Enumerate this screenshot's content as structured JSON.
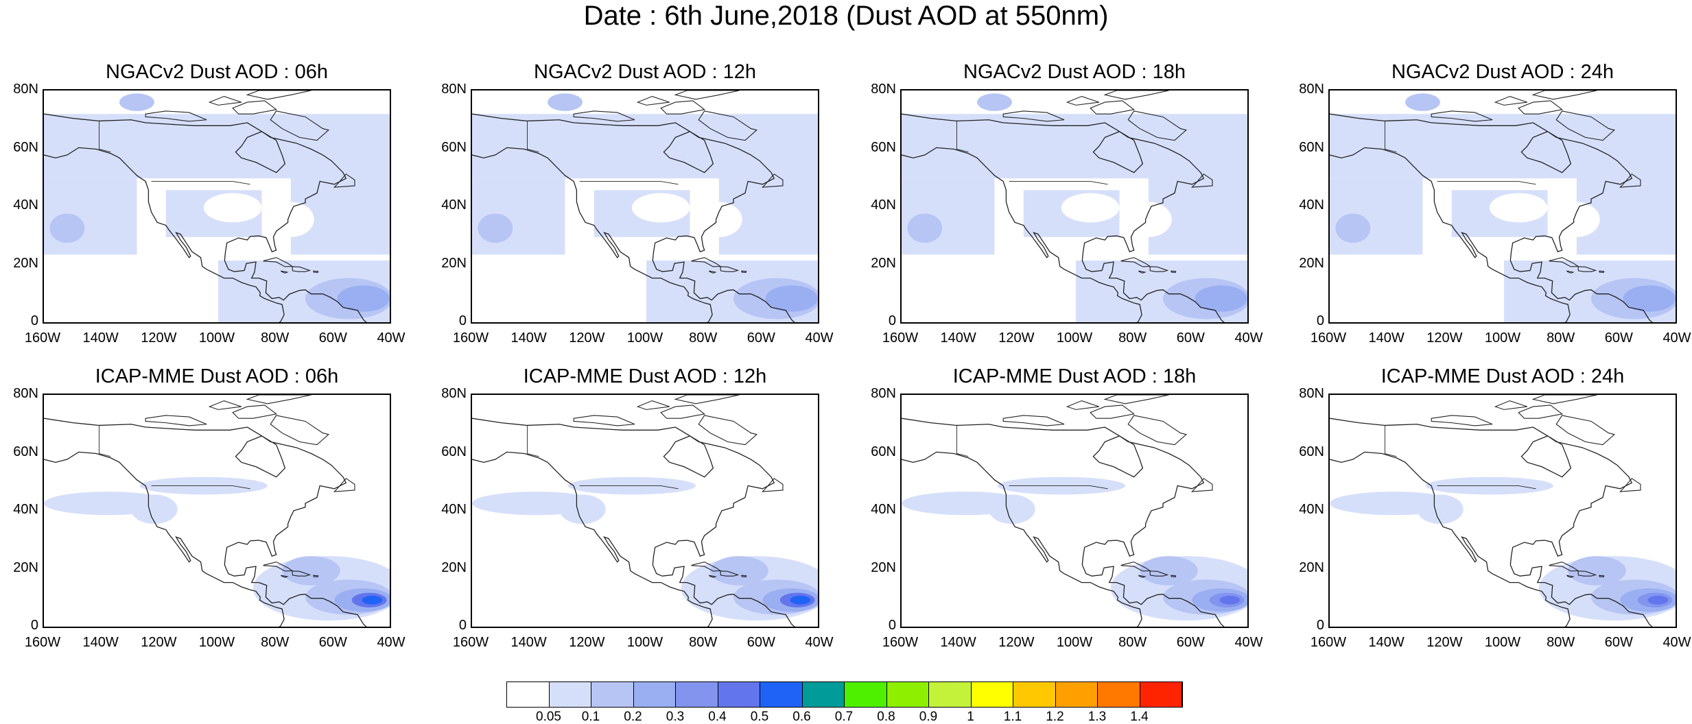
{
  "title": "Date : 6th June,2018 (Dust AOD at 550nm)",
  "lat_labels": [
    "80N",
    "60N",
    "40N",
    "20N",
    "0"
  ],
  "lon_labels": [
    "160W",
    "140W",
    "120W",
    "100W",
    "80W",
    "60W",
    "40W"
  ],
  "rows": [
    {
      "model": "NGACv2",
      "panels": [
        {
          "title": "NGACv2 Dust AOD : 06h",
          "max_level": 3
        },
        {
          "title": "NGACv2 Dust AOD : 12h",
          "max_level": 3
        },
        {
          "title": "NGACv2 Dust AOD : 18h",
          "max_level": 3
        },
        {
          "title": "NGACv2 Dust AOD : 24h",
          "max_level": 3
        }
      ]
    },
    {
      "model": "ICAP-MME",
      "panels": [
        {
          "title": "ICAP-MME Dust AOD : 06h",
          "max_level": 6
        },
        {
          "title": "ICAP-MME Dust AOD : 12h",
          "max_level": 6
        },
        {
          "title": "ICAP-MME Dust AOD : 18h",
          "max_level": 5
        },
        {
          "title": "ICAP-MME Dust AOD : 24h",
          "max_level": 5
        }
      ]
    }
  ],
  "colorbar": {
    "labels": [
      "0.05",
      "0.1",
      "0.2",
      "0.3",
      "0.4",
      "0.5",
      "0.6",
      "0.7",
      "0.8",
      "0.9",
      "1",
      "1.1",
      "1.2",
      "1.3",
      "1.4"
    ],
    "colors": [
      "#ffffff",
      "#d6dffa",
      "#b7c5f5",
      "#9aaff2",
      "#8294ee",
      "#6375ec",
      "#1f63f6",
      "#019c99",
      "#4ef000",
      "#8ef000",
      "#c4f23a",
      "#ffff00",
      "#ffc800",
      "#ffa000",
      "#ff7800",
      "#ff2400"
    ]
  }
}
